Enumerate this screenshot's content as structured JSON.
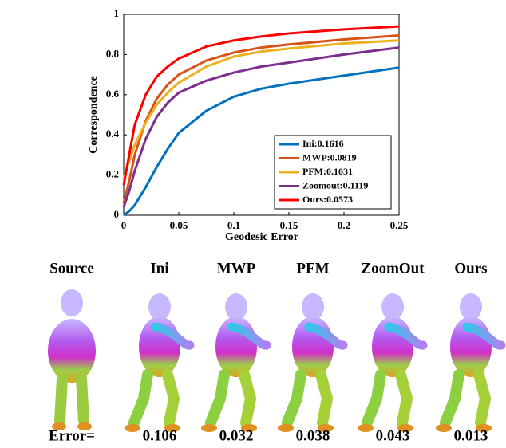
{
  "chart_data": {
    "type": "line",
    "xlabel": "Geodesic Error",
    "ylabel": "Correspondence",
    "x": [
      0,
      0.005,
      0.01,
      0.02,
      0.03,
      0.04,
      0.05,
      0.075,
      0.1,
      0.125,
      0.15,
      0.2,
      0.25
    ],
    "xlim": [
      0,
      0.25
    ],
    "xticks": [
      0,
      0.05,
      0.1,
      0.15,
      0.2,
      0.25
    ],
    "ylim": [
      0,
      1
    ],
    "yticks": [
      0,
      0.2,
      0.4,
      0.6,
      0.8,
      1
    ],
    "legend": "lower right",
    "series": [
      {
        "name": "Ini:0.1616",
        "color": "#0072bd",
        "values": [
          0,
          0.02,
          0.05,
          0.14,
          0.24,
          0.33,
          0.41,
          0.52,
          0.59,
          0.63,
          0.655,
          0.695,
          0.735
        ]
      },
      {
        "name": "MWP:0.0819",
        "color": "#d95319",
        "values": [
          0.06,
          0.17,
          0.3,
          0.47,
          0.58,
          0.65,
          0.7,
          0.77,
          0.81,
          0.835,
          0.85,
          0.875,
          0.895
        ]
      },
      {
        "name": "PFM:0.1031",
        "color": "#edb120",
        "values": [
          0.18,
          0.27,
          0.35,
          0.46,
          0.55,
          0.61,
          0.66,
          0.74,
          0.79,
          0.815,
          0.83,
          0.855,
          0.87
        ]
      },
      {
        "name": "Zoomout:0.1119",
        "color": "#7e2f8e",
        "values": [
          0.04,
          0.12,
          0.22,
          0.38,
          0.49,
          0.56,
          0.61,
          0.67,
          0.71,
          0.74,
          0.76,
          0.8,
          0.835
        ]
      },
      {
        "name": "Ours:0.0573",
        "color": "#ff0000",
        "values": [
          0.15,
          0.3,
          0.45,
          0.6,
          0.69,
          0.74,
          0.78,
          0.84,
          0.87,
          0.89,
          0.905,
          0.925,
          0.94
        ]
      }
    ]
  },
  "figure": {
    "headers": [
      "Source",
      "Ini",
      "MWP",
      "PFM",
      "ZoomOut",
      "Ours"
    ],
    "error_label": "Error=",
    "errors": [
      "0.106",
      "0.032",
      "0.038",
      "0.043",
      "0.013"
    ]
  }
}
